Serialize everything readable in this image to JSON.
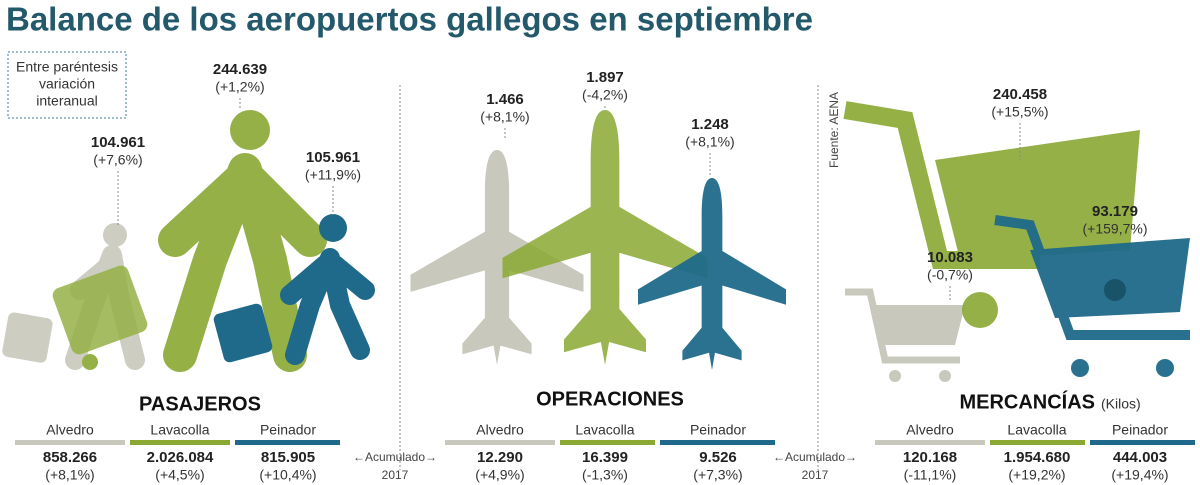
{
  "title": "Balance de los aeropuertos gallegos en septiembre",
  "note": [
    "Entre paréntesis",
    "variación",
    "interanual"
  ],
  "source": "Fuente: AENA",
  "accumulated": [
    "←Acumulado→",
    "2017"
  ],
  "sections": [
    {
      "name": "PASAJEROS",
      "airports": [
        {
          "name": "Alvedro",
          "month": "104.961",
          "month_var": "(+7,6%)",
          "total": "858.266",
          "total_var": "(+8,1%)"
        },
        {
          "name": "Lavacolla",
          "month": "244.639",
          "month_var": "(+1,2%)",
          "total": "2.026.084",
          "total_var": "(+4,5%)"
        },
        {
          "name": "Peinador",
          "month": "105.961",
          "month_var": "(+11,9%)",
          "total": "815.905",
          "total_var": "(+10,4%)"
        }
      ]
    },
    {
      "name": "OPERACIONES",
      "airports": [
        {
          "name": "Alvedro",
          "month": "1.466",
          "month_var": "(+8,1%)",
          "total": "12.290",
          "total_var": "(+4,9%)"
        },
        {
          "name": "Lavacolla",
          "month": "1.897",
          "month_var": "(-4,2%)",
          "total": "16.399",
          "total_var": "(-1,3%)"
        },
        {
          "name": "Peinador",
          "month": "1.248",
          "month_var": "(+8,1%)",
          "total": "9.526",
          "total_var": "(+7,3%)"
        }
      ]
    },
    {
      "name": "MERCANCÍAS",
      "unit": "(Kilos)",
      "airports": [
        {
          "name": "Alvedro",
          "month": "10.083",
          "month_var": "(-0,7%)",
          "total": "120.168",
          "total_var": "(-11,1%)"
        },
        {
          "name": "Lavacolla",
          "month": "240.458",
          "month_var": "(+15,5%)",
          "total": "1.954.680",
          "total_var": "(+19,2%)"
        },
        {
          "name": "Peinador",
          "month": "93.179",
          "month_var": "(+159,7%)",
          "total": "444.003",
          "total_var": "(+19,4%)"
        }
      ]
    }
  ]
}
